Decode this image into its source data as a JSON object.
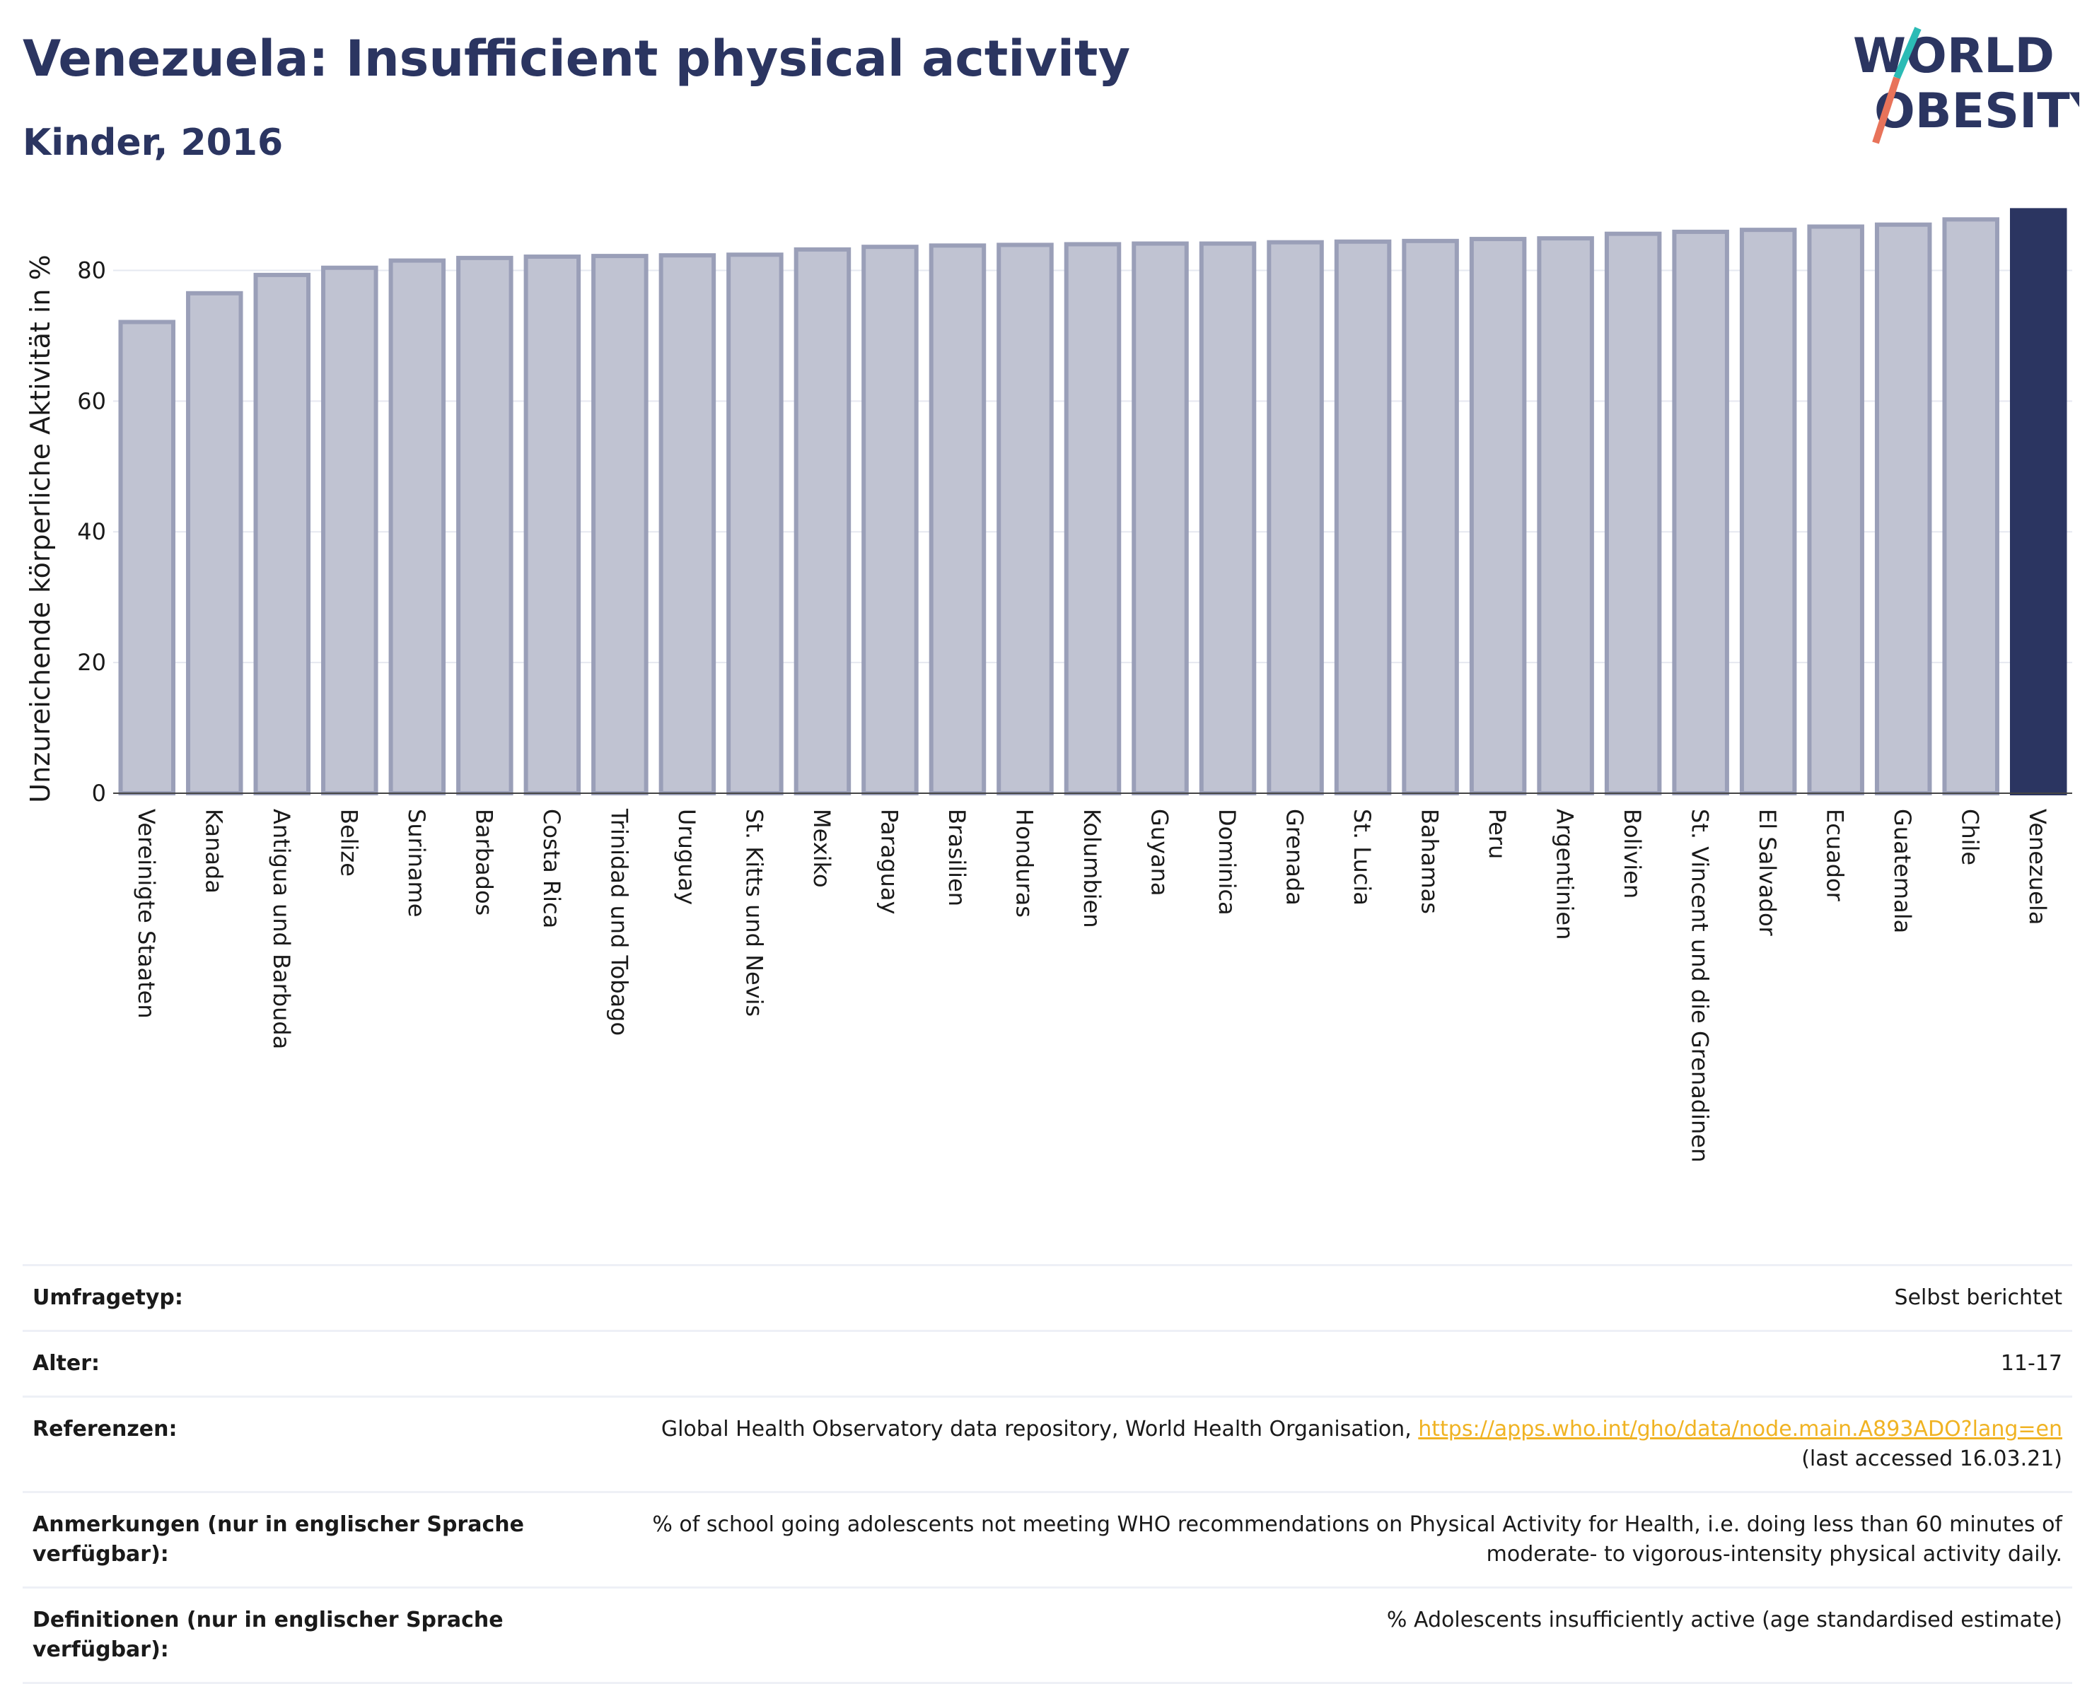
{
  "header": {
    "title": "Venezuela: Insufficient physical activity",
    "subtitle": "Kinder, 2016"
  },
  "logo": {
    "line1": "WORLD",
    "line2": "OBESITY",
    "colors": {
      "text": "#2b3561",
      "slash_top": "#2bbbb5",
      "slash_bottom": "#e8735a"
    }
  },
  "chart_data": {
    "type": "bar",
    "ylabel": "Unzureichende körperliche Aktivität in %",
    "ylim": [
      0,
      90
    ],
    "yticks": [
      0,
      20,
      40,
      60,
      80
    ],
    "grid": true,
    "categories": [
      "Vereinigte Staaten",
      "Kanada",
      "Antigua und Barbuda",
      "Belize",
      "Suriname",
      "Barbados",
      "Costa Rica",
      "Trinidad und Tobago",
      "Uruguay",
      "St. Kitts und Nevis",
      "Mexiko",
      "Paraguay",
      "Brasilien",
      "Honduras",
      "Kolumbien",
      "Guyana",
      "Dominica",
      "Grenada",
      "St. Lucia",
      "Bahamas",
      "Peru",
      "Argentinien",
      "Bolivien",
      "St. Vincent und die Grenadinen",
      "El Salvador",
      "Ecuador",
      "Guatemala",
      "Chile",
      "Venezuela"
    ],
    "values": [
      72.1,
      76.5,
      79.3,
      80.4,
      81.5,
      81.9,
      82.1,
      82.2,
      82.3,
      82.4,
      83.2,
      83.6,
      83.8,
      83.9,
      84.0,
      84.1,
      84.1,
      84.3,
      84.4,
      84.5,
      84.8,
      84.9,
      85.6,
      85.9,
      86.2,
      86.7,
      87.0,
      87.8,
      89.2
    ],
    "highlight": "Venezuela",
    "colors": {
      "bar": "#c0c3d2",
      "bar_border": "#9a9fb8",
      "highlight": "#2b3561"
    }
  },
  "info": [
    {
      "label": "Umfragetyp:",
      "value": "Selbst berichtet"
    },
    {
      "label": "Alter:",
      "value": "11-17"
    },
    {
      "label": "Referenzen:",
      "value": "Global Health Observatory data repository, World Health Organisation, ",
      "link": "https://apps.who.int/gho/data/node.main.A893ADO?lang=en",
      "value_after": "(last accessed 16.03.21)"
    },
    {
      "label": "Anmerkungen (nur in englischer Sprache verfügbar):",
      "value": "% of school going adolescents not meeting WHO recommendations on Physical Activity for Health, i.e. doing less than 60 minutes of moderate- to vigorous-intensity physical activity daily."
    },
    {
      "label": "Definitionen (nur in englischer Sprache verfügbar):",
      "value": "% Adolescents insufficiently active (age standardised estimate)"
    }
  ]
}
